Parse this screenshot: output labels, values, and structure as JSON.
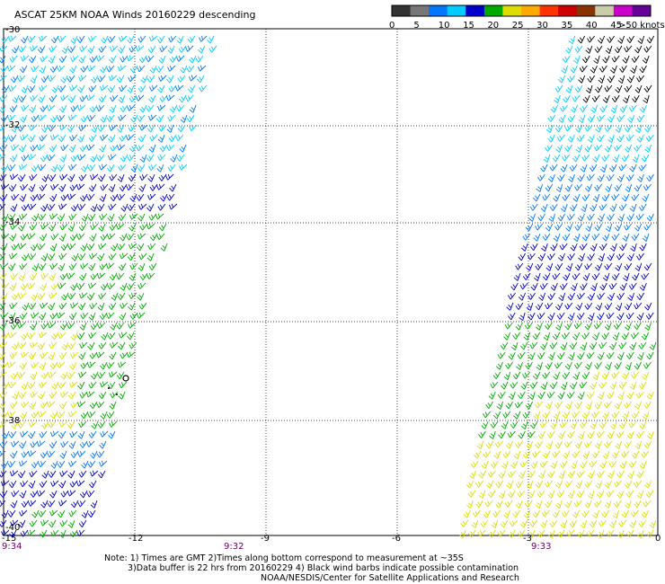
{
  "title": "ASCAT 25KM NOAA Winds 20160229 descending",
  "legend": {
    "bins": [
      {
        "color": "#333333"
      },
      {
        "color": "#777777"
      },
      {
        "color": "#0077ff"
      },
      {
        "color": "#00ccff"
      },
      {
        "color": "#0000cc"
      },
      {
        "color": "#00aa00"
      },
      {
        "color": "#dddd00"
      },
      {
        "color": "#ffaa00"
      },
      {
        "color": "#ff3300"
      },
      {
        "color": "#cc0000"
      },
      {
        "color": "#883300"
      },
      {
        "color": "#ccccaa"
      },
      {
        "color": "#cc00cc"
      },
      {
        "color": "#660099"
      }
    ],
    "tick_labels": [
      "0",
      "5",
      "10",
      "15",
      "20",
      "25",
      "30",
      "35",
      "40",
      "45",
      ">50 knots"
    ]
  },
  "axes": {
    "lat_labels": [
      "-30",
      "-32",
      "-34",
      "-36",
      "-38",
      "-40"
    ],
    "lon_labels": [
      "-15",
      "-12",
      "-9",
      "-6",
      "-3",
      "0"
    ],
    "lat_range": [
      -40,
      -30
    ],
    "lon_range": [
      -15,
      0
    ]
  },
  "times": [
    "9:34",
    "9:32",
    "9:33"
  ],
  "notes": {
    "line1": "Note: 1) Times are GMT 2)Times along bottom correspond to measurement at ~35S",
    "line2": "3)Data buffer is 22 hrs from 20160229 4) Black wind barbs indicate possible contamination",
    "line3": "NOAA/NESDIS/Center for Satellite Applications and Research"
  },
  "colors": {
    "cyan": "#00ccff",
    "light_blue": "#0077ff",
    "dark_blue": "#0000cc",
    "green": "#00aa00",
    "yellow": "#dddd00",
    "black": "#000000"
  }
}
